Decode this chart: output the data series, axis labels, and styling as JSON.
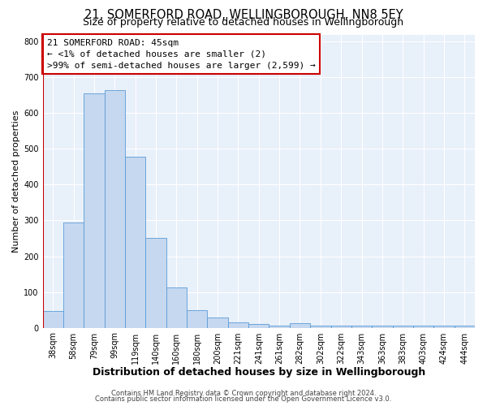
{
  "title": "21, SOMERFORD ROAD, WELLINGBOROUGH, NN8 5EY",
  "subtitle": "Size of property relative to detached houses in Wellingborough",
  "xlabel": "Distribution of detached houses by size in Wellingborough",
  "ylabel": "Number of detached properties",
  "bin_labels": [
    "38sqm",
    "58sqm",
    "79sqm",
    "99sqm",
    "119sqm",
    "140sqm",
    "160sqm",
    "180sqm",
    "200sqm",
    "221sqm",
    "241sqm",
    "261sqm",
    "282sqm",
    "302sqm",
    "322sqm",
    "343sqm",
    "363sqm",
    "383sqm",
    "403sqm",
    "424sqm",
    "444sqm"
  ],
  "bar_heights": [
    47,
    295,
    655,
    665,
    478,
    252,
    113,
    50,
    28,
    15,
    10,
    5,
    13,
    5,
    5,
    5,
    5,
    5,
    5,
    5,
    7
  ],
  "bar_color": "#c5d8f0",
  "bar_edge_color": "#5b9bd5",
  "highlight_color": "#cc0000",
  "annotation_line1": "21 SOMERFORD ROAD: 45sqm",
  "annotation_line2": "← <1% of detached houses are smaller (2)",
  "annotation_line3": ">99% of semi-detached houses are larger (2,599) →",
  "annotation_box_facecolor": "#ffffff",
  "annotation_box_edgecolor": "#cc0000",
  "ylim": [
    0,
    820
  ],
  "yticks": [
    0,
    100,
    200,
    300,
    400,
    500,
    600,
    700,
    800
  ],
  "footer1": "Contains HM Land Registry data © Crown copyright and database right 2024.",
  "footer2": "Contains public sector information licensed under the Open Government Licence v3.0.",
  "fig_bg_color": "#ffffff",
  "plot_bg_color": "#e8f0fa",
  "grid_color": "#ffffff",
  "title_fontsize": 10.5,
  "subtitle_fontsize": 9,
  "xlabel_fontsize": 9,
  "ylabel_fontsize": 8,
  "tick_fontsize": 7,
  "annotation_fontsize": 8,
  "footer_fontsize": 6
}
